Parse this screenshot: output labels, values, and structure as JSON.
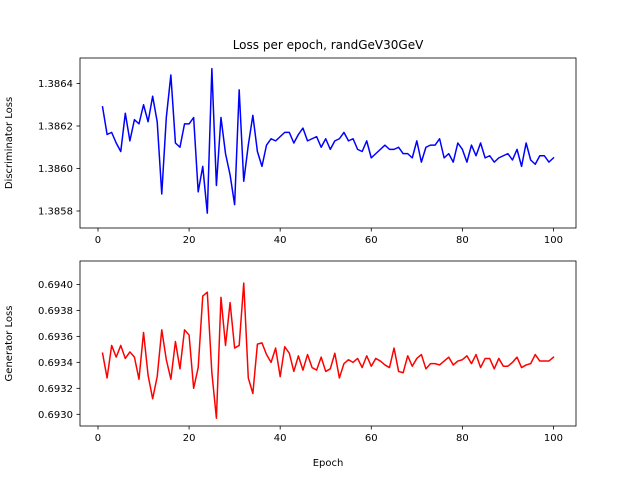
{
  "figure": {
    "title": "Loss per epoch, randGeV30GeV",
    "background": "#ffffff"
  },
  "chart_data": [
    {
      "type": "line",
      "ylabel": "Discriminator Loss",
      "xlabel": "",
      "xlim": [
        -3.95,
        104.95
      ],
      "ylim": [
        1.38572,
        1.38652
      ],
      "xticks": [
        0,
        20,
        40,
        60,
        80,
        100
      ],
      "xtick_labels": [
        "0",
        "20",
        "40",
        "60",
        "80",
        "100"
      ],
      "yticks": [
        1.3858,
        1.386,
        1.3862,
        1.3864
      ],
      "ytick_labels": [
        "1.3858",
        "1.3860",
        "1.3862",
        "1.3864"
      ],
      "grid": false,
      "series": [
        {
          "color": "#0000ff",
          "x": [
            1,
            2,
            3,
            4,
            5,
            6,
            7,
            8,
            9,
            10,
            11,
            12,
            13,
            14,
            15,
            16,
            17,
            18,
            19,
            20,
            21,
            22,
            23,
            24,
            25,
            26,
            27,
            28,
            29,
            30,
            31,
            32,
            33,
            34,
            35,
            36,
            37,
            38,
            39,
            40,
            41,
            42,
            43,
            44,
            45,
            46,
            47,
            48,
            49,
            50,
            51,
            52,
            53,
            54,
            55,
            56,
            57,
            58,
            59,
            60,
            61,
            62,
            63,
            64,
            65,
            66,
            67,
            68,
            69,
            70,
            71,
            72,
            73,
            74,
            75,
            76,
            77,
            78,
            79,
            80,
            81,
            82,
            83,
            84,
            85,
            86,
            87,
            88,
            89,
            90,
            91,
            92,
            93,
            94,
            95,
            96,
            97,
            98,
            99,
            100
          ],
          "values": [
            1.38629,
            1.38616,
            1.38617,
            1.38612,
            1.38608,
            1.38626,
            1.38613,
            1.38623,
            1.38621,
            1.3863,
            1.38622,
            1.38634,
            1.38622,
            1.38588,
            1.38624,
            1.38644,
            1.38612,
            1.3861,
            1.38621,
            1.38621,
            1.38624,
            1.38589,
            1.38601,
            1.38579,
            1.38647,
            1.38592,
            1.38624,
            1.38607,
            1.38597,
            1.38583,
            1.38637,
            1.38594,
            1.38611,
            1.38625,
            1.38608,
            1.38601,
            1.38611,
            1.38614,
            1.38613,
            1.38615,
            1.38617,
            1.38617,
            1.38612,
            1.38616,
            1.38619,
            1.38613,
            1.38614,
            1.38615,
            1.3861,
            1.38614,
            1.38609,
            1.38613,
            1.38614,
            1.38617,
            1.38613,
            1.38614,
            1.38609,
            1.38608,
            1.38613,
            1.38605,
            1.38607,
            1.38609,
            1.38611,
            1.38609,
            1.38609,
            1.3861,
            1.38607,
            1.38607,
            1.38605,
            1.38613,
            1.38603,
            1.3861,
            1.38611,
            1.38611,
            1.38614,
            1.38605,
            1.38607,
            1.38603,
            1.38612,
            1.38609,
            1.38603,
            1.38611,
            1.38606,
            1.38612,
            1.38605,
            1.38606,
            1.38603,
            1.38605,
            1.38606,
            1.38607,
            1.38604,
            1.38609,
            1.38601,
            1.38612,
            1.38604,
            1.38602,
            1.38606,
            1.38606,
            1.38603,
            1.38605
          ]
        }
      ]
    },
    {
      "type": "line",
      "ylabel": "Generator Loss",
      "xlabel": "Epoch",
      "xlim": [
        -3.95,
        104.95
      ],
      "ylim": [
        0.69291,
        0.69418
      ],
      "xticks": [
        0,
        20,
        40,
        60,
        80,
        100
      ],
      "xtick_labels": [
        "0",
        "20",
        "40",
        "60",
        "80",
        "100"
      ],
      "yticks": [
        0.693,
        0.6932,
        0.6934,
        0.6936,
        0.6938,
        0.694
      ],
      "ytick_labels": [
        "0.6930",
        "0.6932",
        "0.6934",
        "0.6936",
        "0.6938",
        "0.6940"
      ],
      "grid": false,
      "series": [
        {
          "color": "#ff0000",
          "x": [
            1,
            2,
            3,
            4,
            5,
            6,
            7,
            8,
            9,
            10,
            11,
            12,
            13,
            14,
            15,
            16,
            17,
            18,
            19,
            20,
            21,
            22,
            23,
            24,
            25,
            26,
            27,
            28,
            29,
            30,
            31,
            32,
            33,
            34,
            35,
            36,
            37,
            38,
            39,
            40,
            41,
            42,
            43,
            44,
            45,
            46,
            47,
            48,
            49,
            50,
            51,
            52,
            53,
            54,
            55,
            56,
            57,
            58,
            59,
            60,
            61,
            62,
            63,
            64,
            65,
            66,
            67,
            68,
            69,
            70,
            71,
            72,
            73,
            74,
            75,
            76,
            77,
            78,
            79,
            80,
            81,
            82,
            83,
            84,
            85,
            86,
            87,
            88,
            89,
            90,
            91,
            92,
            93,
            94,
            95,
            96,
            97,
            98,
            99,
            100
          ],
          "values": [
            0.69347,
            0.69328,
            0.69353,
            0.69344,
            0.69353,
            0.69343,
            0.69348,
            0.69344,
            0.69327,
            0.69363,
            0.6933,
            0.69312,
            0.69329,
            0.69365,
            0.69342,
            0.69327,
            0.69356,
            0.69335,
            0.69365,
            0.69361,
            0.6932,
            0.69336,
            0.69391,
            0.69394,
            0.69332,
            0.69297,
            0.6939,
            0.69353,
            0.69386,
            0.69351,
            0.69353,
            0.69401,
            0.69328,
            0.69316,
            0.69354,
            0.69355,
            0.69346,
            0.6934,
            0.69351,
            0.69329,
            0.69352,
            0.69347,
            0.69333,
            0.69345,
            0.69334,
            0.69346,
            0.69336,
            0.69334,
            0.69344,
            0.69333,
            0.69335,
            0.69347,
            0.69328,
            0.69339,
            0.69342,
            0.6934,
            0.69343,
            0.69336,
            0.69345,
            0.69337,
            0.69343,
            0.69341,
            0.69338,
            0.69336,
            0.69351,
            0.69333,
            0.69332,
            0.69345,
            0.69337,
            0.69343,
            0.69346,
            0.69335,
            0.69339,
            0.69339,
            0.69338,
            0.69341,
            0.69344,
            0.69338,
            0.69341,
            0.69342,
            0.69345,
            0.69339,
            0.69346,
            0.69336,
            0.69343,
            0.69343,
            0.69335,
            0.69343,
            0.69337,
            0.69337,
            0.6934,
            0.69344,
            0.69336,
            0.69338,
            0.69339,
            0.69346,
            0.69341,
            0.69341,
            0.69341,
            0.69344
          ]
        }
      ]
    }
  ]
}
